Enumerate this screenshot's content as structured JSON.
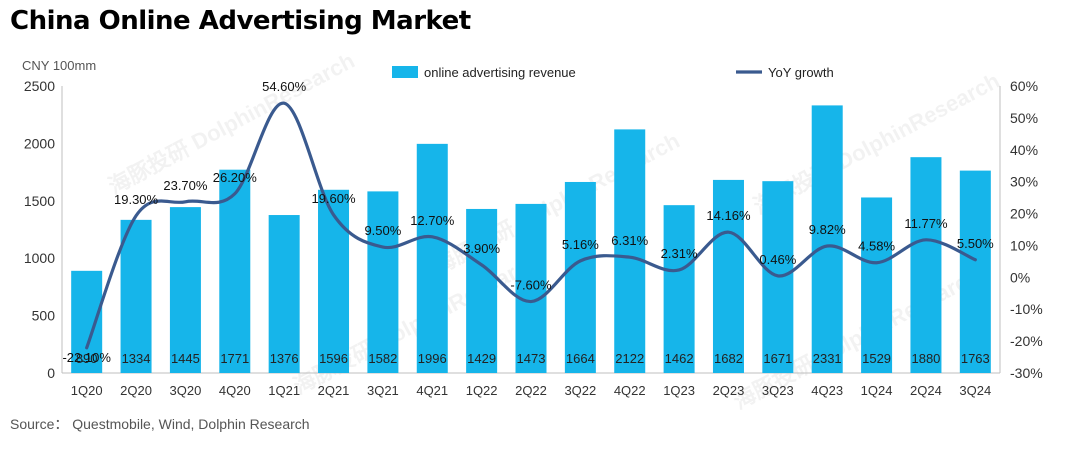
{
  "title": "China Online Advertising Market",
  "source": "Source：  Questmobile, Wind, Dolphin Research",
  "watermark": "海豚投研 DolphinResearch",
  "chart_data": {
    "type": "bar",
    "categories": [
      "1Q20",
      "2Q20",
      "3Q20",
      "4Q20",
      "1Q21",
      "2Q21",
      "3Q21",
      "4Q21",
      "1Q22",
      "2Q22",
      "3Q22",
      "4Q22",
      "1Q23",
      "2Q23",
      "3Q23",
      "4Q23",
      "1Q24",
      "2Q24",
      "3Q24"
    ],
    "series": [
      {
        "name": "online advertising revenue",
        "type": "bar",
        "axis": "left",
        "color": "#16b5ea",
        "values": [
          890,
          1334,
          1445,
          1771,
          1376,
          1596,
          1582,
          1996,
          1429,
          1473,
          1664,
          2122,
          1462,
          1682,
          1671,
          2331,
          1529,
          1880,
          1763
        ],
        "labels": [
          "890",
          "1334",
          "1445",
          "1771",
          "1376",
          "1596",
          "1582",
          "1996",
          "1429",
          "1473",
          "1664",
          "2122",
          "1462",
          "1682",
          "1671",
          "2331",
          "1529",
          "1880",
          "1763"
        ]
      },
      {
        "name": "YoY growth",
        "type": "line",
        "smooth": true,
        "axis": "right",
        "color": "#3a5a8f",
        "values": [
          -22.1,
          19.3,
          23.7,
          26.2,
          54.6,
          19.6,
          9.5,
          12.7,
          3.9,
          -7.6,
          5.16,
          6.31,
          2.31,
          14.16,
          0.46,
          9.82,
          4.58,
          11.77,
          5.5
        ],
        "labels": [
          "-22.10%",
          "19.30%",
          "23.70%",
          "26.20%",
          "54.60%",
          "19.60%",
          "9.50%",
          "12.70%",
          "3.90%",
          "-7.60%",
          "5.16%",
          "6.31%",
          "2.31%",
          "14.16%",
          "0.46%",
          "9.82%",
          "4.58%",
          "11.77%",
          "5.50%"
        ]
      }
    ],
    "ylabel_left": "CNY 100mm",
    "ylim_left": [
      0,
      2500
    ],
    "yticks_left": [
      "0",
      "500",
      "1000",
      "1500",
      "2000",
      "2500"
    ],
    "ylim_right": [
      -30,
      60
    ],
    "yticks_right": [
      "-30%",
      "-20%",
      "-10%",
      "0%",
      "10%",
      "20%",
      "30%",
      "40%",
      "50%",
      "60%"
    ],
    "grid": false,
    "legend_position": "top"
  }
}
